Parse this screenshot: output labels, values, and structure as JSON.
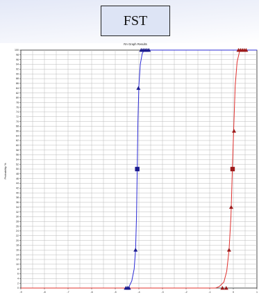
{
  "header": {
    "box_label": "FST"
  },
  "chart_data": {
    "type": "line",
    "title": "RA Graph Results",
    "xlabel": "",
    "ylabel": "Probability %",
    "xlim": [
      -9,
      1
    ],
    "ylim": [
      0,
      100
    ],
    "xticks": [
      -9,
      -8,
      -7,
      -6,
      -5,
      -4,
      -3,
      -2,
      -1,
      0,
      1
    ],
    "yticks": [
      0,
      2,
      4,
      6,
      8,
      10,
      12,
      14,
      16,
      18,
      20,
      22,
      24,
      26,
      28,
      30,
      32,
      34,
      36,
      38,
      40,
      42,
      44,
      46,
      48,
      50,
      52,
      54,
      56,
      58,
      60,
      62,
      64,
      66,
      68,
      70,
      72,
      74,
      76,
      78,
      80,
      82,
      84,
      86,
      88,
      90,
      92,
      94,
      96,
      98,
      100
    ],
    "grid": true,
    "series": [
      {
        "color": "#2b2bd6",
        "marker_color": "#1a1a8c",
        "curve": [
          [
            -4.45,
            0
          ],
          [
            -4.42,
            0.5
          ],
          [
            -4.3,
            3
          ],
          [
            -4.2,
            8
          ],
          [
            -4.14,
            16
          ],
          [
            -4.1,
            30
          ],
          [
            -4.07,
            50
          ],
          [
            -4.04,
            70
          ],
          [
            -4.0,
            85
          ],
          [
            -3.94,
            94
          ],
          [
            -3.86,
            98.5
          ],
          [
            -3.78,
            100
          ]
        ],
        "points": [
          {
            "x": -4.55,
            "y": 0,
            "marker": "triangle"
          },
          {
            "x": -4.48,
            "y": 0,
            "marker": "triangle"
          },
          {
            "x": -4.42,
            "y": 0,
            "marker": "triangle"
          },
          {
            "x": -4.14,
            "y": 16,
            "marker": "triangle"
          },
          {
            "x": -4.07,
            "y": 50,
            "marker": "square"
          },
          {
            "x": -4.02,
            "y": 84,
            "marker": "triangle"
          },
          {
            "x": -3.9,
            "y": 100,
            "marker": "triangle"
          },
          {
            "x": -3.82,
            "y": 100,
            "marker": "triangle"
          },
          {
            "x": -3.74,
            "y": 100,
            "marker": "triangle"
          },
          {
            "x": -3.66,
            "y": 100,
            "marker": "triangle"
          },
          {
            "x": -3.58,
            "y": 100,
            "marker": "triangle"
          }
        ]
      },
      {
        "color": "#e0302e",
        "marker_color": "#9b1a1a",
        "curve": [
          [
            -0.75,
            0
          ],
          [
            -0.6,
            0.6
          ],
          [
            -0.4,
            2.5
          ],
          [
            -0.28,
            7
          ],
          [
            -0.18,
            16
          ],
          [
            -0.1,
            30
          ],
          [
            -0.04,
            50
          ],
          [
            0.02,
            68
          ],
          [
            0.08,
            85
          ],
          [
            0.16,
            95
          ],
          [
            0.26,
            99.3
          ],
          [
            0.36,
            100
          ]
        ],
        "points": [
          {
            "x": -0.46,
            "y": 0,
            "marker": "triangle"
          },
          {
            "x": -0.3,
            "y": 0,
            "marker": "triangle"
          },
          {
            "x": -0.18,
            "y": 16,
            "marker": "triangle"
          },
          {
            "x": -0.09,
            "y": 34,
            "marker": "triangle"
          },
          {
            "x": -0.03,
            "y": 50,
            "marker": "square"
          },
          {
            "x": 0.03,
            "y": 66,
            "marker": "triangle"
          },
          {
            "x": 0.22,
            "y": 100,
            "marker": "triangle"
          },
          {
            "x": 0.3,
            "y": 100,
            "marker": "triangle"
          },
          {
            "x": 0.38,
            "y": 100,
            "marker": "triangle"
          },
          {
            "x": 0.46,
            "y": 100,
            "marker": "triangle"
          },
          {
            "x": 0.54,
            "y": 100,
            "marker": "triangle"
          }
        ]
      }
    ]
  }
}
